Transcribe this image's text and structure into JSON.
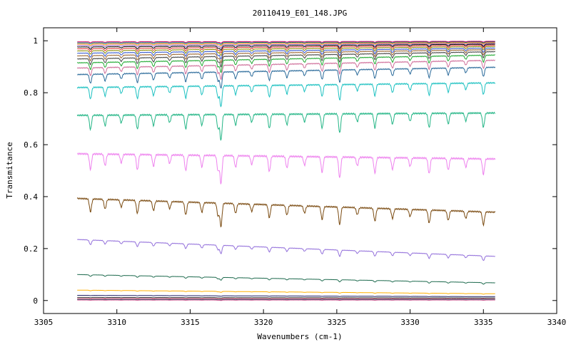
{
  "chart_data": {
    "type": "line",
    "title": "20110419_E01_148.JPG",
    "xlabel": "Wavenumbers (cm-1)",
    "ylabel": "Transmitance",
    "xlim": [
      3305,
      3340
    ],
    "ylim": [
      -0.05,
      1.05
    ],
    "x_ticks": [
      "3305",
      "3310",
      "3315",
      "3320",
      "3325",
      "3330",
      "3335",
      "3340"
    ],
    "y_ticks": [
      "0",
      "0.2",
      "0.4",
      "0.6",
      "0.8",
      "1"
    ],
    "x_data_range": [
      3307.3,
      3335.8
    ],
    "grid": false,
    "legend": "none",
    "absorption_lines_cm1": [
      3308.2,
      3309.2,
      3310.3,
      3311.4,
      3312.5,
      3313.6,
      3314.7,
      3315.8,
      3316.9,
      3317.1,
      3318.1,
      3319.2,
      3320.4,
      3321.6,
      3322.8,
      3324.0,
      3325.2,
      3326.4,
      3327.6,
      3328.8,
      3330.0,
      3331.3,
      3332.6,
      3333.8,
      3335.0
    ],
    "series": [
      {
        "start": 0.393,
        "end": 0.34,
        "depth": 0.05,
        "color": "#7a4a10"
      },
      {
        "start": 0.565,
        "end": 0.545,
        "depth": 0.06,
        "color": "#ee82ee"
      },
      {
        "start": 0.713,
        "end": 0.722,
        "depth": 0.055,
        "color": "#22b585"
      },
      {
        "start": 0.82,
        "end": 0.838,
        "depth": 0.045,
        "color": "#1cc1c1"
      },
      {
        "start": 0.87,
        "end": 0.898,
        "depth": 0.035,
        "color": "#2a6a9a"
      },
      {
        "start": 0.895,
        "end": 0.925,
        "depth": 0.03,
        "color": "#cf6f9a"
      },
      {
        "start": 0.915,
        "end": 0.945,
        "depth": 0.026,
        "color": "#22aa33"
      },
      {
        "start": 0.93,
        "end": 0.958,
        "depth": 0.022,
        "color": "#444444"
      },
      {
        "start": 0.942,
        "end": 0.966,
        "depth": 0.019,
        "color": "#996633"
      },
      {
        "start": 0.952,
        "end": 0.972,
        "depth": 0.016,
        "color": "#3355cc"
      },
      {
        "start": 0.961,
        "end": 0.978,
        "depth": 0.013,
        "color": "#888800"
      },
      {
        "start": 0.969,
        "end": 0.983,
        "depth": 0.011,
        "color": "#dd3333"
      },
      {
        "start": 0.976,
        "end": 0.987,
        "depth": 0.009,
        "color": "#000000"
      },
      {
        "start": 0.982,
        "end": 0.99,
        "depth": 0.007,
        "color": "#9966cc"
      },
      {
        "start": 0.987,
        "end": 0.993,
        "depth": 0.005,
        "color": "#ff8800"
      },
      {
        "start": 0.992,
        "end": 0.996,
        "depth": 0.004,
        "color": "#006666"
      },
      {
        "start": 0.996,
        "end": 0.998,
        "depth": 0.003,
        "color": "#cc0066"
      },
      {
        "start": 0.235,
        "end": 0.17,
        "depth": 0.018,
        "color": "#9370db"
      },
      {
        "start": 0.1,
        "end": 0.068,
        "depth": 0.006,
        "color": "#1f6b4f"
      },
      {
        "start": 0.04,
        "end": 0.026,
        "depth": 0.002,
        "color": "#ffb000"
      },
      {
        "start": 0.02,
        "end": 0.015,
        "depth": 0.001,
        "color": "#222266"
      },
      {
        "start": 0.012,
        "end": 0.01,
        "depth": 0.001,
        "color": "#333333"
      },
      {
        "start": 0.007,
        "end": 0.006,
        "depth": 0.001,
        "color": "#c01040"
      },
      {
        "start": 0.004,
        "end": 0.004,
        "depth": 0.001,
        "color": "#20a0a0"
      },
      {
        "start": 0.002,
        "end": 0.002,
        "depth": 0.001,
        "color": "#d04080"
      }
    ]
  }
}
